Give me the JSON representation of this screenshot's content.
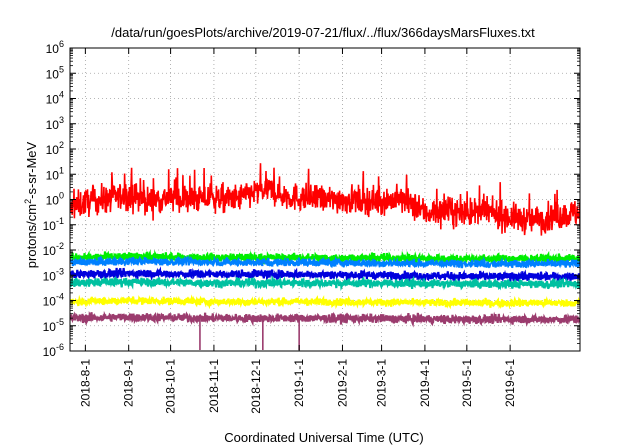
{
  "chart_data": {
    "type": "line",
    "title": "/data/run/goesPlots/archive/2019-07-21/flux/../flux/366daysMarsFluxes.txt",
    "xlabel": "Coordinated Universal Time (UTC)",
    "ylabel": "protons/cm²-s-sr-MeV",
    "yscale": "log",
    "ylim": [
      1e-06,
      1000000.0
    ],
    "xlim": [
      "2018-07-21",
      "2019-07-21"
    ],
    "grid": true,
    "y_ticks": [
      {
        "base": "10",
        "exp": "-6"
      },
      {
        "base": "10",
        "exp": "-5"
      },
      {
        "base": "10",
        "exp": "-4"
      },
      {
        "base": "10",
        "exp": "-3"
      },
      {
        "base": "10",
        "exp": "-2"
      },
      {
        "base": "10",
        "exp": "-1"
      },
      {
        "base": "10",
        "exp": "0"
      },
      {
        "base": "10",
        "exp": "1"
      },
      {
        "base": "10",
        "exp": "2"
      },
      {
        "base": "10",
        "exp": "3"
      },
      {
        "base": "10",
        "exp": "4"
      },
      {
        "base": "10",
        "exp": "5"
      },
      {
        "base": "10",
        "exp": "6"
      }
    ],
    "x_ticks": [
      "2018-8-1",
      "2018-9-1",
      "2018-10-1",
      "2018-11-1",
      "2018-12-1",
      "2019-1-1",
      "2019-2-1",
      "2019-3-1",
      "2019-4-1",
      "2019-5-1",
      "2019-6-1"
    ],
    "series": [
      {
        "color": "#ff0000",
        "x": [
          "2018-07-21",
          "2018-08-01",
          "2018-08-15",
          "2018-09-01",
          "2018-09-15",
          "2018-10-01",
          "2018-10-15",
          "2018-11-01",
          "2018-11-15",
          "2018-12-01",
          "2018-12-10",
          "2018-12-20",
          "2019-01-01",
          "2019-01-15",
          "2019-02-01",
          "2019-02-15",
          "2019-03-01",
          "2019-03-15",
          "2019-04-01",
          "2019-04-15",
          "2019-05-01",
          "2019-05-15",
          "2019-06-01",
          "2019-06-15",
          "2019-07-01",
          "2019-07-21"
        ],
        "y": [
          0.4,
          0.8,
          1.0,
          1.5,
          0.9,
          1.2,
          1.0,
          1.1,
          1.0,
          2.0,
          2.5,
          1.5,
          1.2,
          1.0,
          1.0,
          0.9,
          0.9,
          1.0,
          0.3,
          0.35,
          0.3,
          0.3,
          0.2,
          0.15,
          0.2,
          0.3
        ]
      },
      {
        "color": "#00ee00",
        "x": [
          "2018-07-21",
          "2018-09-01",
          "2018-11-01",
          "2019-01-01",
          "2019-03-01",
          "2019-05-01",
          "2019-07-21"
        ],
        "y": [
          0.005,
          0.0055,
          0.005,
          0.005,
          0.0048,
          0.0045,
          0.0045
        ]
      },
      {
        "color": "#0080ff",
        "x": [
          "2018-07-21",
          "2018-09-01",
          "2018-11-01",
          "2019-01-01",
          "2019-03-01",
          "2019-05-01",
          "2019-07-21"
        ],
        "y": [
          0.0032,
          0.0035,
          0.0032,
          0.0032,
          0.003,
          0.0028,
          0.0028
        ]
      },
      {
        "color": "#ffffff",
        "x": [
          "2018-07-21",
          "2018-09-01",
          "2018-11-01",
          "2019-01-01",
          "2019-03-01",
          "2019-05-01",
          "2019-07-21"
        ],
        "y": [
          0.0018,
          0.002,
          0.0019,
          0.0018,
          0.0017,
          0.0016,
          0.0016
        ]
      },
      {
        "color": "#0000dd",
        "x": [
          "2018-07-21",
          "2018-09-01",
          "2018-11-01",
          "2019-01-01",
          "2019-03-01",
          "2019-05-01",
          "2019-07-21"
        ],
        "y": [
          0.0011,
          0.0012,
          0.0011,
          0.0011,
          0.001,
          0.0009,
          0.0009
        ]
      },
      {
        "color": "#00c0a0",
        "x": [
          "2018-07-21",
          "2018-09-01",
          "2018-11-01",
          "2019-01-01",
          "2019-03-01",
          "2019-05-01",
          "2019-07-21"
        ],
        "y": [
          0.0005,
          0.00055,
          0.0005,
          0.0005,
          0.00048,
          0.00045,
          0.00045
        ]
      },
      {
        "color": "#ffff00",
        "x": [
          "2018-07-21",
          "2018-09-01",
          "2018-11-01",
          "2019-01-01",
          "2019-03-01",
          "2019-05-01",
          "2019-07-21"
        ],
        "y": [
          9e-05,
          0.0001,
          9e-05,
          9e-05,
          8.5e-05,
          8e-05,
          8e-05
        ]
      },
      {
        "color": "#9b3c6e",
        "x": [
          "2018-07-21",
          "2018-09-01",
          "2018-11-01",
          "2019-01-01",
          "2019-03-01",
          "2019-05-01",
          "2019-07-21"
        ],
        "y": [
          2e-05,
          2.2e-05,
          2e-05,
          2e-05,
          1.9e-05,
          1.8e-05,
          1.8e-05
        ]
      }
    ]
  }
}
